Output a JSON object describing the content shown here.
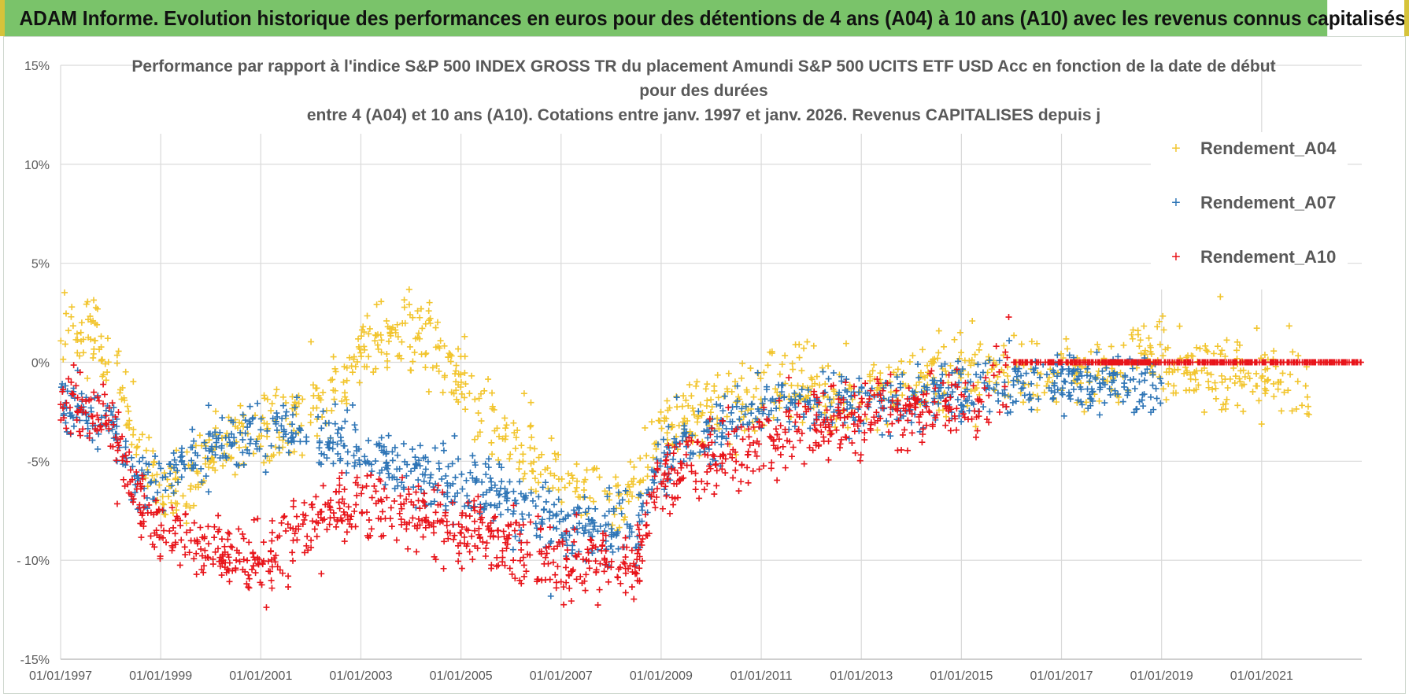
{
  "header": {
    "title": "ADAM Informe. Evolution historique des performances en euros pour des détentions de 4 ans (A04) à 10 ans (A10) avec les revenus connus capitalisés"
  },
  "chart_data": {
    "type": "scatter",
    "title_lines": [
      "Performance par rapport à l'indice S&P 500 INDEX GROSS TR  du placement Amundi S&P 500 UCITS ETF USD Acc en fonction de la date de début",
      "pour des durées",
      "entre 4 (A04) et 10 ans (A10). Cotations entre janv. 1997 et janv. 2026. Revenus CAPITALISES depuis j"
    ],
    "xlabel": "",
    "ylabel": "",
    "x_range": [
      "1997-01-01",
      "2023-01-01"
    ],
    "x_tick_labels": [
      "01/01/1997",
      "01/01/1999",
      "01/01/2001",
      "01/01/2003",
      "01/01/2005",
      "01/01/2007",
      "01/01/2009",
      "01/01/2011",
      "01/01/2013",
      "01/01/2015",
      "01/01/2017",
      "01/01/2019",
      "01/01/2021"
    ],
    "ylim": [
      -15,
      15
    ],
    "y_tick_values": [
      15,
      10,
      5,
      0,
      -5,
      -10,
      -15
    ],
    "y_tick_labels": [
      "15%",
      "10%",
      "5%",
      "0%",
      "-5%",
      "- 10%",
      "-15%"
    ],
    "grid": "vertical and horizontal major lines",
    "legend_position": "right",
    "marker": "+",
    "series": [
      {
        "name": "Rendement_A04",
        "color": "#f2c52e",
        "x": [
          1997.0,
          1997.5,
          1998.0,
          1998.5,
          1999.0,
          1999.5,
          2000.0,
          2000.5,
          2001.0,
          2001.5,
          2002.0,
          2002.5,
          2003.0,
          2003.5,
          2004.0,
          2004.5,
          2005.0,
          2005.5,
          2006.0,
          2006.5,
          2007.0,
          2007.5,
          2008.0,
          2008.5,
          2009.0,
          2009.5,
          2010.0,
          2010.5,
          2011.0,
          2011.5,
          2012.0,
          2012.5,
          2013.0,
          2013.5,
          2014.0,
          2014.5,
          2015.0,
          2015.5,
          2016.0,
          2016.5,
          2017.0,
          2017.5,
          2018.0,
          2018.5,
          2019.0,
          2019.5,
          2020.0,
          2020.5,
          2021.0,
          2021.5,
          2022.0
        ],
        "y": [
          2.0,
          1.5,
          0.0,
          -4.0,
          -6.5,
          -6.0,
          -5.0,
          -4.0,
          -3.5,
          -3.0,
          -2.5,
          -1.5,
          0.5,
          1.5,
          1.5,
          0.5,
          -1.0,
          -3.0,
          -4.0,
          -5.0,
          -6.0,
          -7.0,
          -7.0,
          -6.5,
          -3.5,
          -3.0,
          -2.5,
          -2.0,
          -1.5,
          -1.0,
          -1.0,
          -1.5,
          -1.5,
          -1.5,
          -1.0,
          -1.0,
          -0.5,
          -0.3,
          -0.5,
          -0.8,
          -0.5,
          -0.5,
          -0.3,
          0.5,
          0.5,
          -0.3,
          -0.5,
          -0.5,
          -0.5,
          -1.0,
          -1.0
        ]
      },
      {
        "name": "Rendement_A07",
        "color": "#2e75b6",
        "x": [
          1997.0,
          1997.5,
          1998.0,
          1998.5,
          1999.0,
          1999.5,
          2000.0,
          2000.5,
          2001.0,
          2001.5,
          2002.0,
          2002.5,
          2003.0,
          2003.5,
          2004.0,
          2004.5,
          2005.0,
          2005.5,
          2006.0,
          2006.5,
          2007.0,
          2007.5,
          2008.0,
          2008.5,
          2009.0,
          2009.5,
          2010.0,
          2010.5,
          2011.0,
          2011.5,
          2012.0,
          2012.5,
          2013.0,
          2013.5,
          2014.0,
          2014.5,
          2015.0,
          2015.5,
          2016.0,
          2016.5,
          2017.0,
          2017.5,
          2018.0,
          2018.5,
          2019.0
        ],
        "y": [
          -2.0,
          -2.5,
          -3.0,
          -6.0,
          -6.0,
          -5.0,
          -4.5,
          -4.0,
          -3.5,
          -3.5,
          -3.5,
          -4.0,
          -4.5,
          -5.0,
          -5.5,
          -6.0,
          -6.0,
          -6.5,
          -7.0,
          -7.5,
          -8.0,
          -8.5,
          -8.5,
          -8.5,
          -5.0,
          -4.0,
          -3.5,
          -3.0,
          -2.5,
          -2.0,
          -2.0,
          -2.0,
          -2.0,
          -2.0,
          -2.0,
          -1.5,
          -1.5,
          -1.0,
          -1.0,
          -1.0,
          -1.0,
          -1.0,
          -1.0,
          -1.0,
          -1.0
        ]
      },
      {
        "name": "Rendement_A10",
        "color": "#e8141a",
        "x": [
          1997.0,
          1997.5,
          1998.0,
          1998.5,
          1999.0,
          1999.5,
          2000.0,
          2000.5,
          2001.0,
          2001.5,
          2002.0,
          2002.5,
          2003.0,
          2003.5,
          2004.0,
          2004.5,
          2005.0,
          2005.5,
          2006.0,
          2006.5,
          2007.0,
          2007.5,
          2008.0,
          2008.5,
          2009.0,
          2009.5,
          2010.0,
          2010.5,
          2011.0,
          2011.5,
          2012.0,
          2012.5,
          2013.0,
          2013.5,
          2014.0,
          2014.5,
          2015.0,
          2015.5,
          2016.0,
          2016.5,
          2017.0,
          2017.5,
          2018.0,
          2018.5,
          2019.0,
          2019.5,
          2020.0,
          2020.5,
          2021.0,
          2021.5,
          2022.0,
          2022.5,
          2023.0
        ],
        "y": [
          -2.0,
          -2.5,
          -3.0,
          -7.0,
          -8.5,
          -9.0,
          -9.5,
          -10.0,
          -10.0,
          -9.5,
          -8.0,
          -7.5,
          -7.0,
          -7.5,
          -8.0,
          -8.0,
          -8.5,
          -8.5,
          -9.0,
          -9.5,
          -10.0,
          -10.0,
          -10.5,
          -10.0,
          -6.0,
          -5.5,
          -5.0,
          -4.5,
          -4.0,
          -3.5,
          -3.0,
          -3.0,
          -2.5,
          -2.5,
          -2.5,
          -2.0,
          -2.0,
          -2.0,
          0.0,
          0.0,
          0.0,
          0.0,
          0.0,
          0.0,
          0.0,
          0.0,
          0.0,
          0.0,
          0.0,
          0.0,
          0.0,
          0.0,
          0.0
        ]
      }
    ]
  }
}
